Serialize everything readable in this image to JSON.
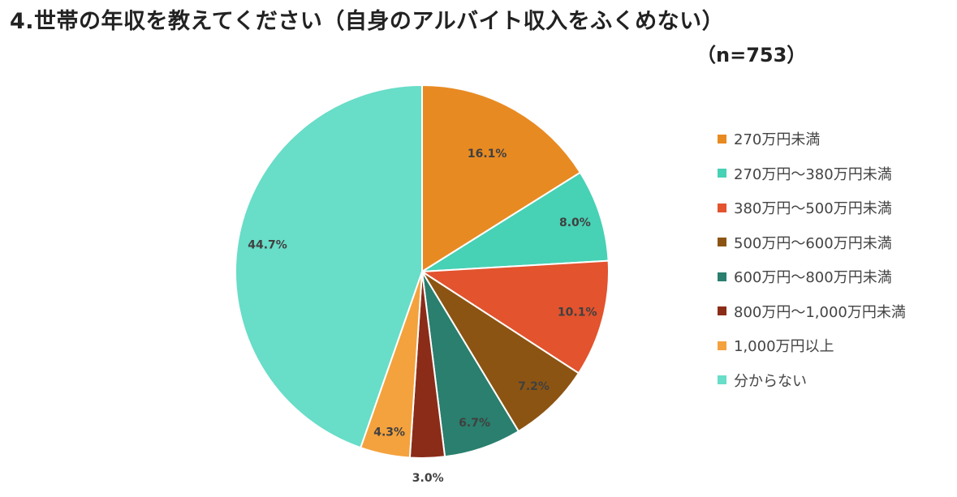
{
  "header": {
    "title": "4.世帯の年収を教えてください（自身のアルバイト収入をふくめない）",
    "subtitle": "（n=753）"
  },
  "chart_data": {
    "type": "pie",
    "title": "4.世帯の年収を教えてください（自身のアルバイト収入をふくめない）",
    "subtitle": "（n=753）",
    "legend_position": "right",
    "categories": [
      "270万円未満",
      "270万円～380万円未満",
      "380万円～500万円未満",
      "500万円～600万円未満",
      "600万円～800万円未満",
      "800万円～1,000万円未満",
      "1,000万円以上",
      "分からない"
    ],
    "values": [
      16.1,
      8.0,
      10.1,
      7.2,
      6.7,
      3.0,
      4.3,
      44.7
    ],
    "labels": [
      "16.1%",
      "8.0%",
      "10.1%",
      "7.2%",
      "6.7%",
      "3.0%",
      "4.3%",
      "44.7%"
    ],
    "colors": [
      "#E88A22",
      "#47D1B5",
      "#E2532E",
      "#8C5412",
      "#2A7F6E",
      "#8B2C18",
      "#F4A23E",
      "#68DDC8"
    ]
  }
}
